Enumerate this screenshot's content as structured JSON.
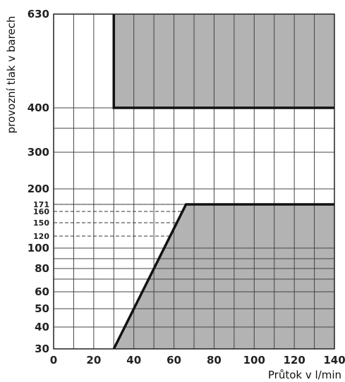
{
  "chart_data": {
    "type": "area",
    "title": "",
    "xlabel": "Průtok v l/min",
    "ylabel": "provozní tlak v barech",
    "x_ticks": [
      0,
      20,
      40,
      60,
      80,
      100,
      120,
      140
    ],
    "x_tick_labels": [
      "0",
      "20",
      "40",
      "60",
      "80",
      "100",
      "120",
      "140"
    ],
    "y_ticks": [
      30,
      40,
      50,
      60,
      80,
      100,
      120,
      150,
      160,
      171,
      200,
      300,
      400,
      630
    ],
    "y_tick_labels": [
      "30",
      "40",
      "50",
      "60",
      "80",
      "100",
      "120",
      "150",
      "160",
      "171",
      "200",
      "300",
      "400",
      "630"
    ],
    "y_ticks_small": [
      "120",
      "150",
      "160",
      "171"
    ],
    "y_gridlines": [
      30,
      40,
      50,
      60,
      70,
      80,
      90,
      100,
      171,
      200,
      300,
      350,
      400,
      630
    ],
    "y_dashed_levels": [
      120,
      150,
      160,
      171
    ],
    "x_gridlines": [
      0,
      10,
      20,
      30,
      40,
      50,
      60,
      70,
      80,
      90,
      100,
      110,
      120,
      130,
      140
    ],
    "xlim": [
      0,
      140
    ],
    "ylim": [
      30,
      630
    ],
    "grid": true,
    "regions": [
      {
        "fill": "#b3b3b3",
        "boundary": [
          [
            30,
            630
          ],
          [
            30,
            400
          ],
          [
            140,
            400
          ],
          [
            140,
            630
          ]
        ]
      },
      {
        "fill": "#b3b3b3",
        "boundary": [
          [
            30,
            30
          ],
          [
            66,
            171
          ],
          [
            140,
            171
          ],
          [
            140,
            30
          ]
        ]
      }
    ],
    "series": [
      {
        "values": [
          [
            30,
            630
          ],
          [
            30,
            400
          ],
          [
            140,
            400
          ]
        ]
      },
      {
        "values": [
          [
            30,
            30
          ],
          [
            66,
            171
          ],
          [
            140,
            171
          ]
        ]
      }
    ]
  }
}
